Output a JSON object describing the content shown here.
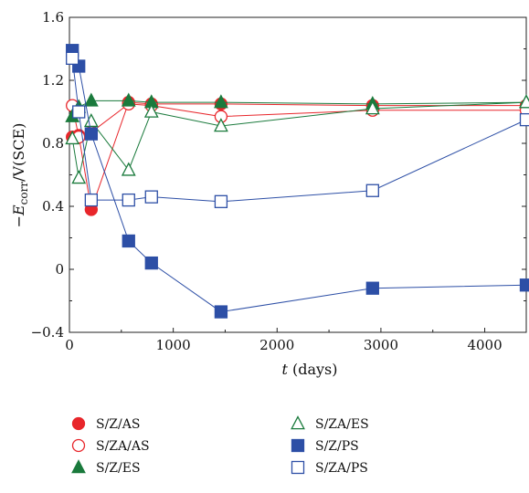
{
  "chart_data": {
    "type": "line",
    "title": "",
    "xlabel_italic": "t",
    "xlabel_rest": " (days)",
    "ylabel_prefix": "−E",
    "ylabel_sub": "corr",
    "ylabel_rest": "/V(SCE)",
    "xlim": [
      0,
      4400
    ],
    "ylim": [
      -0.4,
      1.6
    ],
    "x_ticks": [
      0,
      1000,
      2000,
      3000,
      4000
    ],
    "x_tick_labels": [
      "0",
      "1000",
      "2000",
      "3000",
      "4000"
    ],
    "y_ticks": [
      -0.4,
      0,
      0.4,
      0.8,
      1.2,
      1.6
    ],
    "y_tick_labels": [
      "−0.4",
      "0",
      "0.4",
      "0.8",
      "1.2",
      "1.6"
    ],
    "grid": false,
    "legend_position": "bottom",
    "series": [
      {
        "name": "S/Z/AS",
        "color": "#e8262b",
        "marker": "circle",
        "filled": true,
        "x": [
          28,
          90,
          210,
          570,
          790,
          1460,
          2920,
          4400
        ],
        "y": [
          0.84,
          0.85,
          0.38,
          1.06,
          1.05,
          1.05,
          1.04,
          1.04
        ]
      },
      {
        "name": "S/ZA/AS",
        "color": "#e8262b",
        "marker": "circle",
        "filled": false,
        "x": [
          28,
          90,
          210,
          570,
          790,
          1460,
          2920,
          4400
        ],
        "y": [
          1.04,
          0.84,
          0.87,
          1.05,
          1.04,
          0.97,
          1.01,
          1.01
        ]
      },
      {
        "name": "S/Z/ES",
        "color": "#1a7a3c",
        "marker": "triangle",
        "filled": true,
        "x": [
          28,
          90,
          210,
          570,
          790,
          1460,
          2920,
          4400
        ],
        "y": [
          0.97,
          1.03,
          1.07,
          1.07,
          1.06,
          1.06,
          1.05,
          1.06
        ]
      },
      {
        "name": "S/ZA/ES",
        "color": "#1a7a3c",
        "marker": "triangle",
        "filled": false,
        "x": [
          28,
          90,
          210,
          570,
          790,
          1460,
          2920,
          4400
        ],
        "y": [
          0.83,
          0.58,
          0.94,
          0.63,
          1.0,
          0.91,
          1.02,
          1.06
        ]
      },
      {
        "name": "S/Z/PS",
        "color": "#2d4fa6",
        "marker": "square",
        "filled": true,
        "x": [
          28,
          90,
          210,
          570,
          790,
          1460,
          2920,
          4400
        ],
        "y": [
          1.39,
          1.29,
          0.86,
          0.18,
          0.04,
          -0.27,
          -0.12,
          -0.1
        ]
      },
      {
        "name": "S/ZA/PS",
        "color": "#2d4fa6",
        "marker": "square",
        "filled": false,
        "x": [
          28,
          90,
          210,
          570,
          790,
          1460,
          2920,
          4400
        ],
        "y": [
          1.34,
          1.0,
          0.44,
          0.44,
          0.46,
          0.43,
          0.5,
          0.95
        ]
      }
    ]
  }
}
